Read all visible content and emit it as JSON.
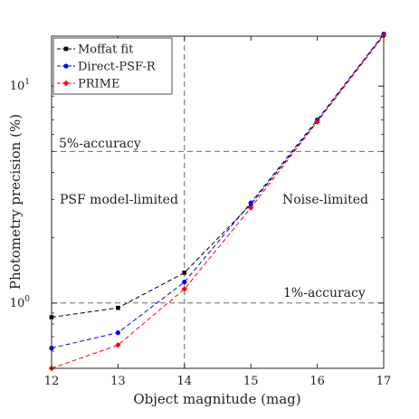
{
  "chart_data": {
    "type": "line",
    "title": "",
    "xlabel": "Object magnitude (mag)",
    "ylabel": "Photometry precision (%)",
    "x_scale": "linear",
    "y_scale": "log",
    "xlim": [
      12,
      17
    ],
    "ylim": [
      0.5,
      17
    ],
    "x_ticks": [
      "12",
      "13",
      "14",
      "15",
      "16",
      "17"
    ],
    "y_tick_labels": [
      {
        "value": 1,
        "base": "10",
        "exp": "0"
      },
      {
        "value": 10,
        "base": "10",
        "exp": "1"
      }
    ],
    "grid": false,
    "legend_position": "top-left",
    "x": [
      12,
      13,
      14,
      15,
      16,
      17
    ],
    "series": [
      {
        "name": "Moffat fit",
        "color": "#000000",
        "marker": "square",
        "values": [
          0.86,
          0.95,
          1.38,
          2.85,
          6.9,
          17.3
        ]
      },
      {
        "name": "Direct-PSF-R",
        "color": "#0000ff",
        "marker": "circle",
        "values": [
          0.62,
          0.73,
          1.25,
          2.9,
          7.0,
          17.4
        ]
      },
      {
        "name": "PRIME",
        "color": "#ff0000",
        "marker": "diamond",
        "values": [
          0.5,
          0.64,
          1.16,
          2.75,
          6.85,
          17.1
        ]
      }
    ],
    "reference_lines": [
      {
        "orientation": "horizontal",
        "value": 5,
        "label": "5%-accuracy"
      },
      {
        "orientation": "horizontal",
        "value": 1,
        "label": "1%-accuracy"
      },
      {
        "orientation": "vertical",
        "value": 14,
        "label": ""
      }
    ],
    "annotations": [
      "PSF model-limited",
      "Noise-limited"
    ]
  }
}
